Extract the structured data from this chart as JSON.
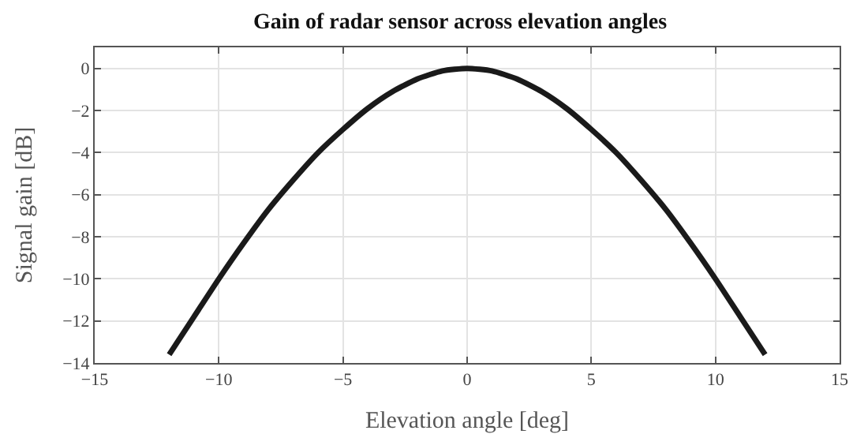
{
  "chart_data": {
    "type": "line",
    "title": "Gain of radar sensor across elevation angles",
    "xlabel": "Elevation angle [deg]",
    "ylabel": "Signal gain [dB]",
    "x": [
      -12,
      -11,
      -10,
      -9,
      -8,
      -7,
      -6,
      -5,
      -4,
      -3,
      -2,
      -1,
      0,
      1,
      2,
      3,
      4,
      5,
      6,
      7,
      8,
      9,
      10,
      11,
      12
    ],
    "series": [
      {
        "color": "#1a1a1a",
        "values": [
          -13.6,
          -11.8,
          -10,
          -8.3,
          -6.7,
          -5.3,
          -4,
          -2.9,
          -1.9,
          -1.1,
          -0.5,
          -0.12,
          0,
          -0.12,
          -0.5,
          -1.1,
          -1.9,
          -2.9,
          -4,
          -5.3,
          -6.7,
          -8.3,
          -10,
          -11.8,
          -13.6
        ]
      }
    ],
    "xlim": [
      -15,
      15
    ],
    "xticks": [
      -15,
      -10,
      -5,
      0,
      5,
      10,
      15
    ],
    "ylim": [
      -14,
      1
    ],
    "yticks": [
      -14,
      -12,
      -10,
      -8,
      -6,
      -4,
      -2,
      0
    ],
    "grid": true,
    "legend": false,
    "line_style": "solid",
    "marker": "none"
  }
}
